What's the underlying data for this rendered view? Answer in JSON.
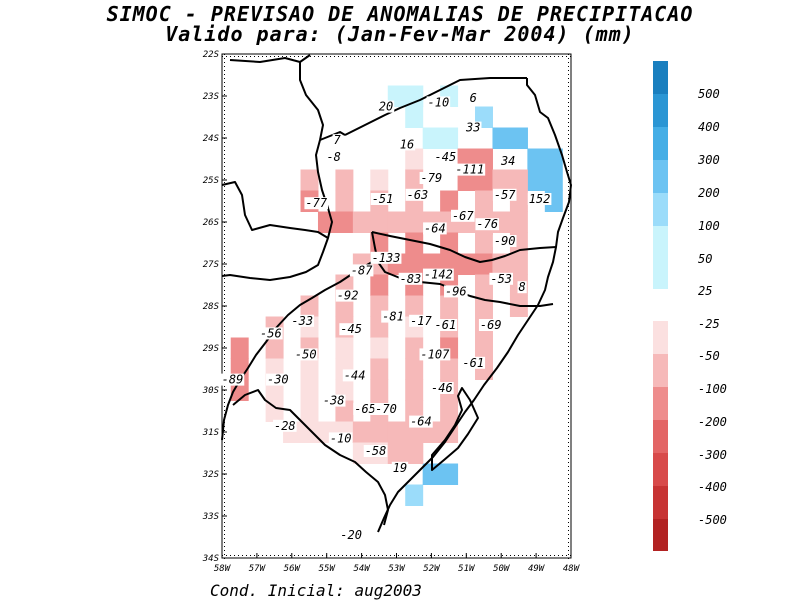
{
  "title_line1": "SIMOC - PREVISAO DE ANOMALIAS DE PRECIPITACAO",
  "title_line2": "Valido para: (Jan-Fev-Mar 2004) (mm)",
  "footer": "Cond. Inicial: aug2003",
  "lat_labels": [
    "22S",
    "23S",
    "24S",
    "25S",
    "26S",
    "27S",
    "28S",
    "29S",
    "30S",
    "31S",
    "32S",
    "33S",
    "34S"
  ],
  "lon_labels": [
    "58W",
    "57W",
    "56W",
    "55W",
    "54W",
    "53W",
    "52W",
    "51W",
    "50W",
    "49W",
    "48W"
  ],
  "legend": {
    "labels": [
      "500",
      "400",
      "300",
      "200",
      "100",
      "50",
      "25",
      "-25",
      "-50",
      "-100",
      "-200",
      "-300",
      "-400",
      "-500"
    ],
    "colors_positive": [
      "#1a7fbf",
      "#2b96d4",
      "#45aee6",
      "#6cc3f2",
      "#9bdcfa",
      "#c9f4fc"
    ],
    "colors_negative": [
      "#fbe0e0",
      "#f6b9b9",
      "#ee8c8c",
      "#e36565",
      "#d84a4a",
      "#c73333",
      "#b22222"
    ]
  },
  "anomaly_labels": [
    {
      "text": "20",
      "lat": -23.3,
      "lon": -53.3
    },
    {
      "text": "-10",
      "lat": -23.2,
      "lon": -51.8
    },
    {
      "text": "6",
      "lat": -23.1,
      "lon": -50.8
    },
    {
      "text": "33",
      "lat": -23.8,
      "lon": -50.8
    },
    {
      "text": "7",
      "lat": -24.1,
      "lon": -54.7
    },
    {
      "text": "16",
      "lat": -24.2,
      "lon": -52.7
    },
    {
      "text": "-8",
      "lat": -24.5,
      "lon": -54.8
    },
    {
      "text": "-45",
      "lat": -24.5,
      "lon": -51.6
    },
    {
      "text": "34",
      "lat": -24.6,
      "lon": -49.8
    },
    {
      "text": "-79",
      "lat": -25.0,
      "lon": -52.0
    },
    {
      "text": "-111",
      "lat": -24.8,
      "lon": -50.9
    },
    {
      "text": "-51",
      "lat": -25.5,
      "lon": -53.4
    },
    {
      "text": "-63",
      "lat": -25.4,
      "lon": -52.4
    },
    {
      "text": "-57",
      "lat": -25.4,
      "lon": -49.9
    },
    {
      "text": "152",
      "lat": -25.5,
      "lon": -48.9
    },
    {
      "text": "-77",
      "lat": -25.6,
      "lon": -55.3
    },
    {
      "text": "-67",
      "lat": -25.9,
      "lon": -51.1
    },
    {
      "text": "-64",
      "lat": -26.2,
      "lon": -51.9
    },
    {
      "text": "-76",
      "lat": -26.1,
      "lon": -50.4
    },
    {
      "text": "-90",
      "lat": -26.5,
      "lon": -49.9
    },
    {
      "text": "-133",
      "lat": -26.9,
      "lon": -53.3
    },
    {
      "text": "-87",
      "lat": -27.2,
      "lon": -54.0
    },
    {
      "text": "-142",
      "lat": -27.3,
      "lon": -51.8
    },
    {
      "text": "-83",
      "lat": -27.4,
      "lon": -52.6
    },
    {
      "text": "-53",
      "lat": -27.4,
      "lon": -50.0
    },
    {
      "text": "8",
      "lat": -27.6,
      "lon": -49.4
    },
    {
      "text": "-92",
      "lat": -27.8,
      "lon": -54.4
    },
    {
      "text": "-96",
      "lat": -27.7,
      "lon": -51.3
    },
    {
      "text": "-33",
      "lat": -28.4,
      "lon": -55.7
    },
    {
      "text": "-81",
      "lat": -28.3,
      "lon": -53.1
    },
    {
      "text": "-17",
      "lat": -28.4,
      "lon": -52.3
    },
    {
      "text": "-61",
      "lat": -28.5,
      "lon": -51.6
    },
    {
      "text": "-69",
      "lat": -28.5,
      "lon": -50.3
    },
    {
      "text": "-56",
      "lat": -28.7,
      "lon": -56.6
    },
    {
      "text": "-45",
      "lat": -28.6,
      "lon": -54.3
    },
    {
      "text": "-50",
      "lat": -29.2,
      "lon": -55.6
    },
    {
      "text": "-107",
      "lat": -29.2,
      "lon": -51.9
    },
    {
      "text": "-61",
      "lat": -29.4,
      "lon": -50.8
    },
    {
      "text": "-44",
      "lat": -29.7,
      "lon": -54.2
    },
    {
      "text": "-89",
      "lat": -29.8,
      "lon": -57.7
    },
    {
      "text": "-30",
      "lat": -29.8,
      "lon": -56.4
    },
    {
      "text": "-46",
      "lat": -30.0,
      "lon": -51.7
    },
    {
      "text": "-38",
      "lat": -30.3,
      "lon": -54.8
    },
    {
      "text": "-65",
      "lat": -30.5,
      "lon": -53.9
    },
    {
      "text": "-70",
      "lat": -30.5,
      "lon": -53.3
    },
    {
      "text": "-64",
      "lat": -30.8,
      "lon": -52.3
    },
    {
      "text": "-28",
      "lat": -30.9,
      "lon": -56.2
    },
    {
      "text": "-10",
      "lat": -31.2,
      "lon": -54.6
    },
    {
      "text": "-58",
      "lat": -31.5,
      "lon": -53.6
    },
    {
      "text": "19",
      "lat": -31.9,
      "lon": -52.9
    },
    {
      "text": "-20",
      "lat": -33.5,
      "lon": -54.3
    }
  ],
  "shaded_cells": [
    {
      "lat": -23.0,
      "lon": -53.0,
      "v": 35
    },
    {
      "lat": -23.0,
      "lon": -52.5,
      "v": 35
    },
    {
      "lat": -23.0,
      "lon": -51.5,
      "v": 30
    },
    {
      "lat": -23.5,
      "lon": -52.5,
      "v": 30
    },
    {
      "lat": -24.0,
      "lon": -52.0,
      "v": 40
    },
    {
      "lat": -23.5,
      "lon": -50.5,
      "v": 60
    },
    {
      "lat": -24.0,
      "lon": -50.0,
      "v": 120
    },
    {
      "lat": -24.0,
      "lon": -49.5,
      "v": 150
    },
    {
      "lat": -24.5,
      "lon": -49.0,
      "v": 150
    },
    {
      "lat": -25.0,
      "lon": -49.0,
      "v": 150
    },
    {
      "lat": -25.5,
      "lon": -48.5,
      "v": 150
    },
    {
      "lat": -32.5,
      "lon": -52.5,
      "v": 60
    },
    {
      "lat": -32.0,
      "lon": -52.0,
      "v": 120
    },
    {
      "lat": -25.0,
      "lon": -55.5,
      "v": -80
    },
    {
      "lat": -25.0,
      "lon": -54.5,
      "v": -60
    },
    {
      "lat": -25.0,
      "lon": -53.5,
      "v": -40
    },
    {
      "lat": -24.5,
      "lon": -52.5,
      "v": -40
    },
    {
      "lat": -25.0,
      "lon": -52.5,
      "v": -80
    },
    {
      "lat": -24.5,
      "lon": -51.0,
      "v": -120
    },
    {
      "lat": -25.0,
      "lon": -51.0,
      "v": -150
    },
    {
      "lat": -25.0,
      "lon": -50.0,
      "v": -90
    },
    {
      "lat": -25.5,
      "lon": -55.5,
      "v": -120
    },
    {
      "lat": -25.5,
      "lon": -54.5,
      "v": -80
    },
    {
      "lat": -25.5,
      "lon": -53.5,
      "v": -60
    },
    {
      "lat": -25.5,
      "lon": -52.5,
      "v": -90
    },
    {
      "lat": -25.5,
      "lon": -51.5,
      "v": -110
    },
    {
      "lat": -25.5,
      "lon": -50.5,
      "v": -80
    },
    {
      "lat": -25.5,
      "lon": -49.5,
      "v": -60
    },
    {
      "lat": -26.0,
      "lon": -55.0,
      "v": -120
    },
    {
      "lat": -26.0,
      "lon": -54.0,
      "v": -90
    },
    {
      "lat": -26.0,
      "lon": -53.0,
      "v": -80
    },
    {
      "lat": -26.0,
      "lon": -52.0,
      "v": -70
    },
    {
      "lat": -26.0,
      "lon": -51.0,
      "v": -80
    },
    {
      "lat": -26.0,
      "lon": -50.0,
      "v": -80
    },
    {
      "lat": -26.5,
      "lon": -53.5,
      "v": -150
    },
    {
      "lat": -26.5,
      "lon": -52.5,
      "v": -140
    },
    {
      "lat": -26.5,
      "lon": -51.5,
      "v": -120
    },
    {
      "lat": -26.5,
      "lon": -50.5,
      "v": -90
    },
    {
      "lat": -26.5,
      "lon": -49.5,
      "v": -90
    },
    {
      "lat": -27.0,
      "lon": -54.0,
      "v": -90
    },
    {
      "lat": -27.0,
      "lon": -53.0,
      "v": -140
    },
    {
      "lat": -27.0,
      "lon": -52.0,
      "v": -140
    },
    {
      "lat": -27.0,
      "lon": -51.0,
      "v": -110
    },
    {
      "lat": -27.0,
      "lon": -50.0,
      "v": -70
    },
    {
      "lat": -27.5,
      "lon": -54.5,
      "v": -90
    },
    {
      "lat": -27.5,
      "lon": -53.5,
      "v": -110
    },
    {
      "lat": -27.5,
      "lon": -52.5,
      "v": -140
    },
    {
      "lat": -27.5,
      "lon": -51.5,
      "v": -110
    },
    {
      "lat": -27.5,
      "lon": -50.5,
      "v": -80
    },
    {
      "lat": -27.5,
      "lon": -49.5,
      "v": -60
    },
    {
      "lat": -28.0,
      "lon": -55.5,
      "v": -60
    },
    {
      "lat": -28.0,
      "lon": -54.5,
      "v": -90
    },
    {
      "lat": -28.0,
      "lon": -53.5,
      "v": -90
    },
    {
      "lat": -28.0,
      "lon": -52.5,
      "v": -90
    },
    {
      "lat": -28.0,
      "lon": -51.5,
      "v": -90
    },
    {
      "lat": -28.0,
      "lon": -50.5,
      "v": -70
    },
    {
      "lat": -28.0,
      "lon": -49.5,
      "v": -60
    },
    {
      "lat": -28.5,
      "lon": -56.5,
      "v": -60
    },
    {
      "lat": -28.5,
      "lon": -55.5,
      "v": -40
    },
    {
      "lat": -28.5,
      "lon": -54.5,
      "v": -50
    },
    {
      "lat": -28.5,
      "lon": -53.5,
      "v": -60
    },
    {
      "lat": -28.5,
      "lon": -52.5,
      "v": -30
    },
    {
      "lat": -28.5,
      "lon": -51.5,
      "v": -80
    },
    {
      "lat": -28.5,
      "lon": -50.5,
      "v": -80
    },
    {
      "lat": -29.0,
      "lon": -57.5,
      "v": -110
    },
    {
      "lat": -29.0,
      "lon": -56.5,
      "v": -60
    },
    {
      "lat": -29.0,
      "lon": -55.5,
      "v": -50
    },
    {
      "lat": -29.0,
      "lon": -54.5,
      "v": -45
    },
    {
      "lat": -29.0,
      "lon": -53.5,
      "v": -40
    },
    {
      "lat": -29.0,
      "lon": -52.5,
      "v": -60
    },
    {
      "lat": -29.0,
      "lon": -51.5,
      "v": -110
    },
    {
      "lat": -29.0,
      "lon": -50.5,
      "v": -90
    },
    {
      "lat": -29.5,
      "lon": -57.5,
      "v": -120
    },
    {
      "lat": -29.5,
      "lon": -56.5,
      "v": -40
    },
    {
      "lat": -29.5,
      "lon": -55.5,
      "v": -35
    },
    {
      "lat": -29.5,
      "lon": -54.5,
      "v": -45
    },
    {
      "lat": -29.5,
      "lon": -53.5,
      "v": -50
    },
    {
      "lat": -29.5,
      "lon": -52.5,
      "v": -70
    },
    {
      "lat": -29.5,
      "lon": -51.5,
      "v": -90
    },
    {
      "lat": -29.5,
      "lon": -50.5,
      "v": -70
    },
    {
      "lat": -30.0,
      "lon": -57.5,
      "v": -110
    },
    {
      "lat": -30.0,
      "lon": -56.5,
      "v": -35
    },
    {
      "lat": -30.0,
      "lon": -55.5,
      "v": -30
    },
    {
      "lat": -30.0,
      "lon": -54.5,
      "v": -40
    },
    {
      "lat": -30.0,
      "lon": -53.5,
      "v": -60
    },
    {
      "lat": -30.0,
      "lon": -52.5,
      "v": -70
    },
    {
      "lat": -30.0,
      "lon": -51.5,
      "v": -60
    },
    {
      "lat": -30.5,
      "lon": -56.5,
      "v": -30
    },
    {
      "lat": -30.5,
      "lon": -55.5,
      "v": -30
    },
    {
      "lat": -30.5,
      "lon": -54.5,
      "v": -50
    },
    {
      "lat": -30.5,
      "lon": -53.5,
      "v": -80
    },
    {
      "lat": -30.5,
      "lon": -52.5,
      "v": -80
    },
    {
      "lat": -30.5,
      "lon": -51.5,
      "v": -60
    },
    {
      "lat": -31.0,
      "lon": -56.0,
      "v": -30
    },
    {
      "lat": -31.0,
      "lon": -55.0,
      "v": -25
    },
    {
      "lat": -31.0,
      "lon": -54.0,
      "v": -60
    },
    {
      "lat": -31.0,
      "lon": -53.0,
      "v": -90
    },
    {
      "lat": -31.0,
      "lon": -52.0,
      "v": -70
    },
    {
      "lat": -31.5,
      "lon": -54.0,
      "v": -40
    },
    {
      "lat": -31.5,
      "lon": -53.0,
      "v": -70
    },
    {
      "lat": -31.5,
      "lon": -52.5,
      "v": -60
    }
  ]
}
